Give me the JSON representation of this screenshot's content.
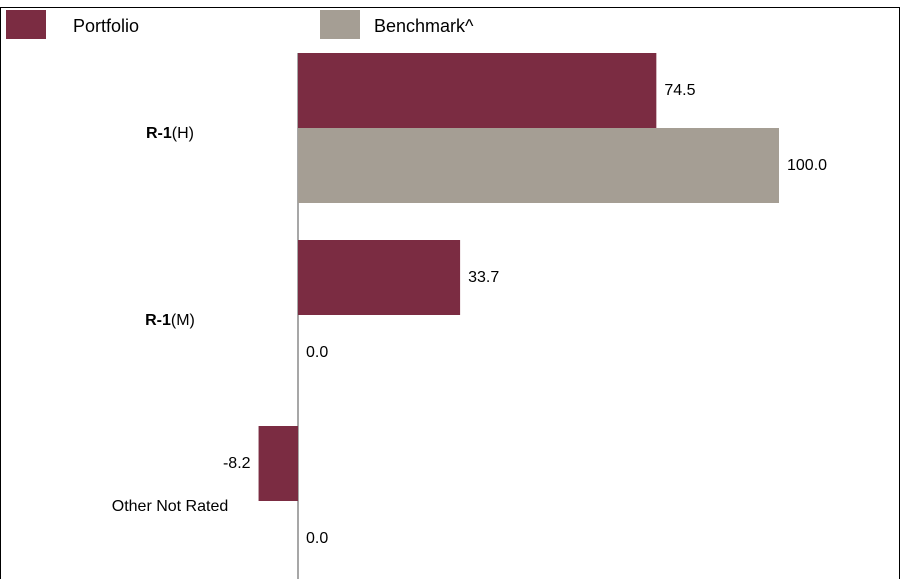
{
  "title": "",
  "legend": {
    "items": [
      {
        "name": "Portfolio",
        "color": "#7b2c42"
      },
      {
        "name": "Benchmark^",
        "color": "#a59e94"
      }
    ]
  },
  "chart_data": {
    "type": "bar",
    "orientation": "horizontal",
    "categories": [
      "R-1(H)",
      "R-1(M)",
      "Other Not Rated"
    ],
    "series": [
      {
        "name": "Portfolio",
        "color": "#7b2c42",
        "values": [
          74.5,
          33.7,
          -8.2
        ],
        "labels": [
          "74.5",
          "33.7",
          "-8.2"
        ]
      },
      {
        "name": "Benchmark^",
        "color": "#a59e94",
        "values": [
          100.0,
          0.0,
          0.0
        ],
        "labels": [
          "100.0",
          "0.0",
          "0.0"
        ]
      }
    ],
    "category_labels": [
      {
        "bold": "R-1",
        "rest": "(H)"
      },
      {
        "bold": "R-1",
        "rest": "(M)"
      },
      {
        "bold": "",
        "rest": "Other Not Rated"
      }
    ],
    "xlim": [
      -8.2,
      100.0
    ],
    "grid": false,
    "legend_position": "top-left"
  }
}
